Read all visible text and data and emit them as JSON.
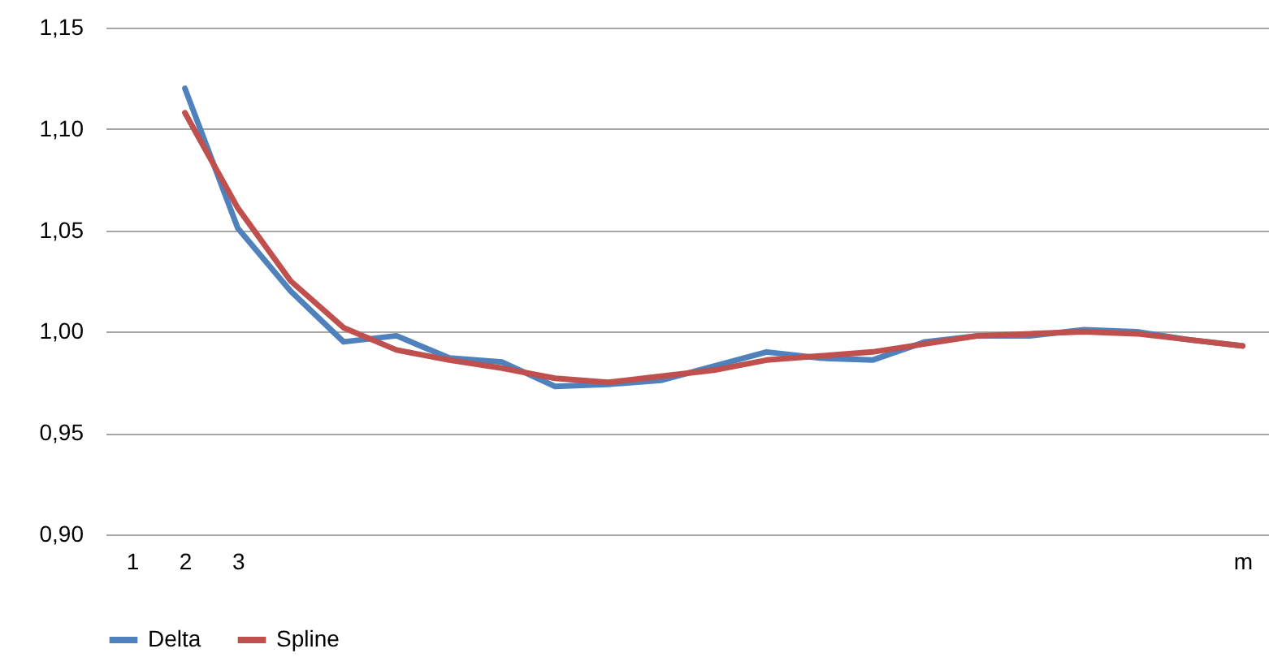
{
  "chart_data": {
    "type": "line",
    "categories": [
      "1",
      "2",
      "3",
      null,
      null,
      null,
      null,
      null,
      null,
      null,
      null,
      null,
      null,
      null,
      null,
      null,
      null,
      null,
      null,
      null,
      null,
      "m"
    ],
    "series": [
      {
        "name": "Delta",
        "color": "#4f81bd",
        "values": [
          null,
          1.12,
          1.051,
          1.02,
          0.995,
          0.998,
          0.987,
          0.985,
          0.973,
          0.974,
          0.976,
          0.983,
          0.99,
          0.987,
          0.986,
          0.995,
          0.998,
          0.998,
          1.001,
          1.0,
          0.996,
          0.993
        ]
      },
      {
        "name": "Spline",
        "color": "#c0504d",
        "values": [
          null,
          1.108,
          1.061,
          1.025,
          1.002,
          0.991,
          0.986,
          0.982,
          0.977,
          0.975,
          0.978,
          0.981,
          0.986,
          0.988,
          0.99,
          0.994,
          0.998,
          0.999,
          1.0,
          0.999,
          0.996,
          0.993
        ]
      }
    ],
    "ylim": [
      0.9,
      1.15
    ],
    "yticks": [
      {
        "value": 0.9,
        "label": "0,90"
      },
      {
        "value": 0.95,
        "label": "0,95"
      },
      {
        "value": 1.0,
        "label": "1,00"
      },
      {
        "value": 1.05,
        "label": "1,05"
      },
      {
        "value": 1.1,
        "label": "1,10"
      },
      {
        "value": 1.15,
        "label": "1,15"
      }
    ],
    "grid": "y",
    "legend": "bottom",
    "marker": "none",
    "line_style": "solid"
  }
}
